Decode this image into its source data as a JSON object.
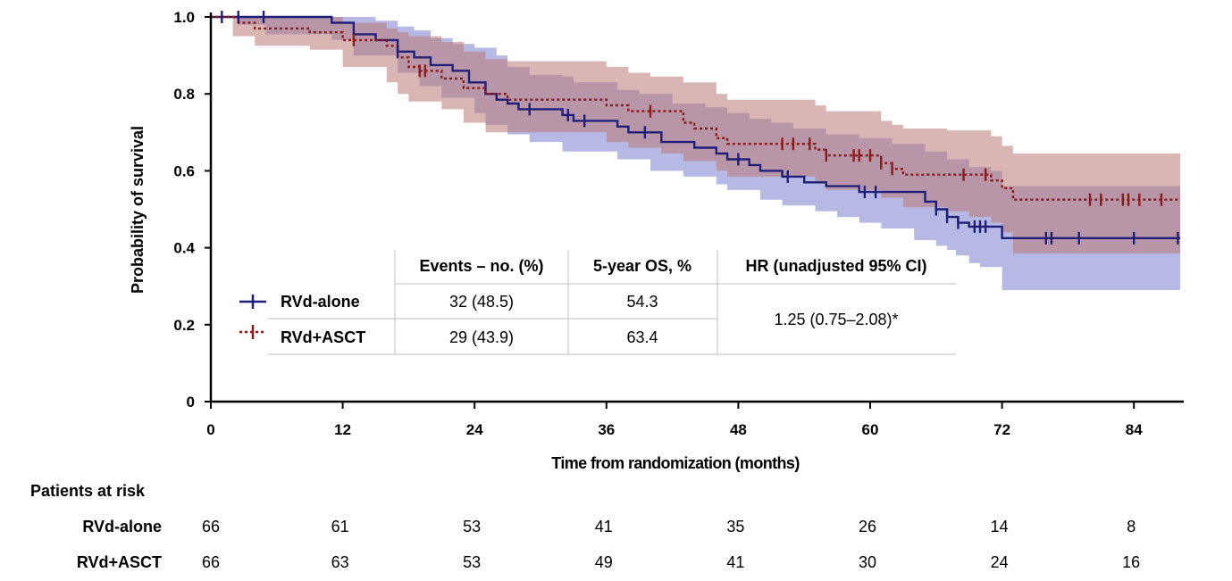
{
  "chart_data": {
    "type": "line",
    "xlabel": "Time from randomization (months)",
    "ylabel": "Probability of survival",
    "xlim": [
      0,
      89
    ],
    "ylim": [
      0,
      1.0
    ],
    "x_ticks": [
      "0",
      "12",
      "24",
      "36",
      "48",
      "60",
      "72",
      "84"
    ],
    "y_ticks": [
      "0",
      "0.2",
      "0.4",
      "0.6",
      "0.8",
      "1.0"
    ],
    "grid": false,
    "series": [
      {
        "name": "RVd-alone",
        "color": "#1f1f7a",
        "band_color": "#7b80d0",
        "line_style": "solid",
        "steps": [
          [
            0,
            1.0
          ],
          [
            11,
            0.985
          ],
          [
            13,
            0.955
          ],
          [
            15,
            0.94
          ],
          [
            17,
            0.91
          ],
          [
            18.5,
            0.895
          ],
          [
            20,
            0.875
          ],
          [
            22,
            0.86
          ],
          [
            23.5,
            0.83
          ],
          [
            25,
            0.8
          ],
          [
            26,
            0.785
          ],
          [
            27,
            0.775
          ],
          [
            28,
            0.76
          ],
          [
            32,
            0.745
          ],
          [
            33,
            0.73
          ],
          [
            37,
            0.715
          ],
          [
            38,
            0.7
          ],
          [
            41,
            0.675
          ],
          [
            44,
            0.66
          ],
          [
            46,
            0.645
          ],
          [
            47,
            0.63
          ],
          [
            49,
            0.615
          ],
          [
            50,
            0.6
          ],
          [
            52,
            0.585
          ],
          [
            54,
            0.57
          ],
          [
            56,
            0.56
          ],
          [
            59,
            0.545
          ],
          [
            65,
            0.52
          ],
          [
            66,
            0.5
          ],
          [
            67,
            0.48
          ],
          [
            68,
            0.465
          ],
          [
            69,
            0.455
          ],
          [
            72,
            0.425
          ],
          [
            89,
            0.425
          ]
        ],
        "ci_lower": [
          [
            0,
            1.0
          ],
          [
            2.5,
            0.98
          ],
          [
            5,
            0.955
          ],
          [
            11,
            0.94
          ],
          [
            13,
            0.9
          ],
          [
            17,
            0.855
          ],
          [
            19,
            0.82
          ],
          [
            21,
            0.79
          ],
          [
            24,
            0.75
          ],
          [
            25,
            0.72
          ],
          [
            27,
            0.695
          ],
          [
            29,
            0.675
          ],
          [
            32,
            0.65
          ],
          [
            37,
            0.63
          ],
          [
            40,
            0.6
          ],
          [
            43,
            0.585
          ],
          [
            46,
            0.565
          ],
          [
            47,
            0.55
          ],
          [
            50,
            0.525
          ],
          [
            52,
            0.51
          ],
          [
            55,
            0.495
          ],
          [
            57,
            0.48
          ],
          [
            59,
            0.465
          ],
          [
            61,
            0.45
          ],
          [
            64,
            0.42
          ],
          [
            66,
            0.405
          ],
          [
            67,
            0.38
          ],
          [
            69,
            0.36
          ],
          [
            70,
            0.35
          ],
          [
            72,
            0.29
          ],
          [
            89,
            0.29
          ]
        ],
        "ci_upper": [
          [
            0,
            1.0
          ],
          [
            11,
            1.0
          ],
          [
            13,
            1.0
          ],
          [
            15,
            0.99
          ],
          [
            17,
            0.975
          ],
          [
            18.5,
            0.965
          ],
          [
            20,
            0.945
          ],
          [
            22,
            0.93
          ],
          [
            24,
            0.92
          ],
          [
            26,
            0.9
          ],
          [
            27,
            0.87
          ],
          [
            29,
            0.85
          ],
          [
            32,
            0.845
          ],
          [
            33,
            0.83
          ],
          [
            37,
            0.81
          ],
          [
            39,
            0.8
          ],
          [
            42,
            0.775
          ],
          [
            45,
            0.765
          ],
          [
            47,
            0.75
          ],
          [
            49,
            0.735
          ],
          [
            51,
            0.725
          ],
          [
            53,
            0.71
          ],
          [
            56,
            0.695
          ],
          [
            59,
            0.685
          ],
          [
            62,
            0.67
          ],
          [
            65,
            0.65
          ],
          [
            67,
            0.63
          ],
          [
            69,
            0.61
          ],
          [
            71,
            0.6
          ],
          [
            72,
            0.56
          ],
          [
            89,
            0.56
          ]
        ],
        "censor_x": [
          1,
          2.5,
          4.8,
          17,
          29,
          32.5,
          34,
          39.5,
          48,
          52.5,
          59.5,
          60.5,
          66,
          67,
          68,
          69.5,
          70,
          70.5,
          76,
          76.5,
          79,
          84,
          88
        ]
      },
      {
        "name": "RVd+ASCT",
        "color": "#8b1a1a",
        "band_color": "#b97a74",
        "line_style": "dotted",
        "steps": [
          [
            0,
            1.0
          ],
          [
            2.5,
            0.985
          ],
          [
            4,
            0.97
          ],
          [
            9,
            0.96
          ],
          [
            12,
            0.94
          ],
          [
            16,
            0.925
          ],
          [
            17,
            0.895
          ],
          [
            18,
            0.87
          ],
          [
            19,
            0.86
          ],
          [
            21,
            0.84
          ],
          [
            23,
            0.815
          ],
          [
            25,
            0.8
          ],
          [
            27,
            0.785
          ],
          [
            34,
            0.785
          ],
          [
            36,
            0.77
          ],
          [
            38,
            0.755
          ],
          [
            43,
            0.725
          ],
          [
            44,
            0.71
          ],
          [
            46,
            0.685
          ],
          [
            47,
            0.67
          ],
          [
            55,
            0.655
          ],
          [
            56,
            0.64
          ],
          [
            61,
            0.62
          ],
          [
            62,
            0.605
          ],
          [
            63,
            0.59
          ],
          [
            71,
            0.575
          ],
          [
            72,
            0.555
          ],
          [
            73,
            0.525
          ],
          [
            89,
            0.525
          ]
        ],
        "ci_lower": [
          [
            0,
            1.0
          ],
          [
            2,
            0.95
          ],
          [
            4,
            0.925
          ],
          [
            9,
            0.915
          ],
          [
            12,
            0.87
          ],
          [
            16,
            0.83
          ],
          [
            17,
            0.8
          ],
          [
            18,
            0.78
          ],
          [
            21,
            0.76
          ],
          [
            23,
            0.725
          ],
          [
            25,
            0.7
          ],
          [
            27,
            0.7
          ],
          [
            34,
            0.7
          ],
          [
            36,
            0.675
          ],
          [
            38,
            0.66
          ],
          [
            41,
            0.645
          ],
          [
            43,
            0.625
          ],
          [
            46,
            0.6
          ],
          [
            47,
            0.585
          ],
          [
            55,
            0.57
          ],
          [
            56,
            0.55
          ],
          [
            61,
            0.53
          ],
          [
            63,
            0.505
          ],
          [
            67,
            0.495
          ],
          [
            69,
            0.48
          ],
          [
            71,
            0.465
          ],
          [
            72,
            0.44
          ],
          [
            73,
            0.385
          ],
          [
            89,
            0.385
          ]
        ],
        "ci_upper": [
          [
            0,
            1.0
          ],
          [
            2,
            1.0
          ],
          [
            4,
            1.0
          ],
          [
            9,
            1.0
          ],
          [
            12,
            0.985
          ],
          [
            16,
            0.97
          ],
          [
            17,
            0.96
          ],
          [
            18,
            0.95
          ],
          [
            21,
            0.935
          ],
          [
            23,
            0.91
          ],
          [
            25,
            0.89
          ],
          [
            27,
            0.885
          ],
          [
            34,
            0.885
          ],
          [
            36,
            0.87
          ],
          [
            38,
            0.855
          ],
          [
            40,
            0.845
          ],
          [
            43,
            0.83
          ],
          [
            46,
            0.8
          ],
          [
            47,
            0.785
          ],
          [
            55,
            0.77
          ],
          [
            56,
            0.755
          ],
          [
            61,
            0.73
          ],
          [
            62,
            0.72
          ],
          [
            63,
            0.71
          ],
          [
            67,
            0.705
          ],
          [
            71,
            0.69
          ],
          [
            72,
            0.665
          ],
          [
            73,
            0.645
          ],
          [
            89,
            0.645
          ]
        ],
        "censor_x": [
          13,
          19,
          19.5,
          40,
          52,
          53,
          54.5,
          56,
          58.5,
          59,
          60,
          61,
          62,
          68.5,
          70.5,
          80,
          81,
          83,
          83.5,
          84.5,
          86.5
        ]
      }
    ]
  },
  "legend_table": {
    "columns": [
      "Events – no. (%)",
      "5-year OS, %",
      "HR (unadjusted 95% CI)"
    ],
    "rows": [
      {
        "label": "RVd-alone",
        "events": "32 (48.5)",
        "os5": "54.3"
      },
      {
        "label": "RVd+ASCT",
        "events": "29 (43.9)",
        "os5": "63.4"
      }
    ],
    "hr": "1.25 (0.75–2.08)*"
  },
  "risk_table": {
    "title": "Patients at risk",
    "rows": [
      {
        "label": "RVd-alone",
        "values": [
          "66",
          "61",
          "53",
          "41",
          "35",
          "26",
          "14",
          "8"
        ]
      },
      {
        "label": "RVd+ASCT",
        "values": [
          "66",
          "63",
          "53",
          "49",
          "41",
          "30",
          "24",
          "16"
        ]
      }
    ]
  }
}
